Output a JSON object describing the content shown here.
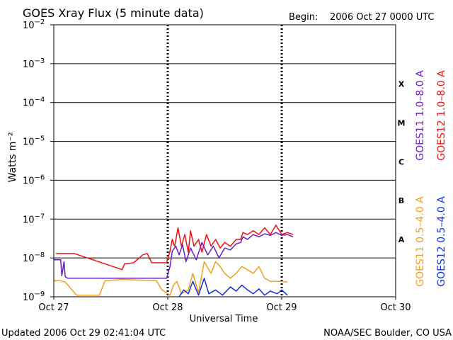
{
  "header": {
    "title": "GOES Xray Flux (5 minute data)",
    "begin_label": "Begin:",
    "begin_value": "2006 Oct 27 0000 UTC"
  },
  "footer": {
    "updated": "Updated 2006 Oct 29 02:41:04 UTC",
    "credit": "NOAA/SEC Boulder, CO USA"
  },
  "chart_data": {
    "type": "line",
    "title": "GOES Xray Flux (5 minute data)",
    "xlabel": "Universal Time",
    "ylabel": "Watts m⁻²",
    "yscale": "log",
    "ylim": [
      1e-09,
      0.01
    ],
    "xlim_days": [
      0,
      3
    ],
    "x_ticks": [
      {
        "label": "Oct 27",
        "day": 0
      },
      {
        "label": "Oct 28",
        "day": 1
      },
      {
        "label": "Oct 29",
        "day": 2
      },
      {
        "label": "Oct 30",
        "day": 3
      }
    ],
    "y_ticks": [
      {
        "base": "10",
        "exp": "−2",
        "value": 0.01
      },
      {
        "base": "10",
        "exp": "−3",
        "value": 0.001
      },
      {
        "base": "10",
        "exp": "−4",
        "value": 0.0001
      },
      {
        "base": "10",
        "exp": "−5",
        "value": 1e-05
      },
      {
        "base": "10",
        "exp": "−6",
        "value": 1e-06
      },
      {
        "base": "10",
        "exp": "−7",
        "value": 1e-07
      },
      {
        "base": "10",
        "exp": "−8",
        "value": 1e-08
      },
      {
        "base": "10",
        "exp": "−9",
        "value": 1e-09
      }
    ],
    "flare_classes": [
      {
        "label": "X",
        "value": 0.0003
      },
      {
        "label": "M",
        "value": 3e-05
      },
      {
        "label": "C",
        "value": 3e-06
      },
      {
        "label": "B",
        "value": 3e-07
      },
      {
        "label": "A",
        "value": 3e-08
      }
    ],
    "grid": true,
    "legend_position": "right",
    "series": [
      {
        "name": "GOES11 1.0–8.0 A",
        "color": "#6a1fc0",
        "points": [
          [
            0,
            9e-09
          ],
          [
            0.06,
            9e-09
          ],
          [
            0.07,
            3.5e-09
          ],
          [
            0.09,
            8e-09
          ],
          [
            0.1,
            3.3e-09
          ],
          [
            0.12,
            3e-09
          ],
          [
            0.25,
            3e-09
          ],
          [
            0.5,
            3e-09
          ],
          [
            0.8,
            3e-09
          ],
          [
            0.99,
            3e-09
          ],
          [
            1.02,
            6e-09
          ],
          [
            1.04,
            1.5e-08
          ],
          [
            1.07,
            2e-08
          ],
          [
            1.1,
            1.2e-08
          ],
          [
            1.13,
            2.2e-08
          ],
          [
            1.16,
            8e-09
          ],
          [
            1.2,
            1.8e-08
          ],
          [
            1.25,
            9e-09
          ],
          [
            1.3,
            2.5e-08
          ],
          [
            1.35,
            1.2e-08
          ],
          [
            1.4,
            2e-08
          ],
          [
            1.45,
            1e-08
          ],
          [
            1.5,
            1.8e-08
          ],
          [
            1.55,
            1.6e-08
          ],
          [
            1.6,
            2.3e-08
          ],
          [
            1.64,
            2.5e-08
          ],
          [
            1.66,
            3.5e-08
          ],
          [
            1.7,
            3e-08
          ],
          [
            1.75,
            4e-08
          ],
          [
            1.8,
            3.5e-08
          ],
          [
            1.85,
            4.2e-08
          ],
          [
            1.9,
            3.8e-08
          ],
          [
            1.95,
            4.5e-08
          ],
          [
            2.0,
            3.8e-08
          ],
          [
            2.05,
            4e-08
          ],
          [
            2.1,
            3.5e-08
          ]
        ]
      },
      {
        "name": "GOES12 1.0–8.0 A",
        "color": "#ee1111",
        "points": [
          [
            0.02,
            1.3e-08
          ],
          [
            0.18,
            1.3e-08
          ],
          [
            0.6,
            5e-09
          ],
          [
            0.62,
            7e-09
          ],
          [
            0.7,
            7.5e-09
          ],
          [
            0.78,
            1.2e-08
          ],
          [
            0.82,
            1.3e-08
          ],
          [
            0.86,
            7.5e-09
          ],
          [
            0.99,
            7.5e-09
          ],
          [
            1.02,
            1.5e-08
          ],
          [
            1.04,
            3e-08
          ],
          [
            1.06,
            2e-08
          ],
          [
            1.09,
            6e-08
          ],
          [
            1.12,
            2e-08
          ],
          [
            1.15,
            4e-08
          ],
          [
            1.18,
            1.4e-08
          ],
          [
            1.2,
            5e-08
          ],
          [
            1.23,
            2e-08
          ],
          [
            1.27,
            3e-08
          ],
          [
            1.3,
            1.4e-08
          ],
          [
            1.34,
            4e-08
          ],
          [
            1.38,
            2e-08
          ],
          [
            1.42,
            3e-08
          ],
          [
            1.46,
            1.8e-08
          ],
          [
            1.5,
            2.5e-08
          ],
          [
            1.55,
            2e-08
          ],
          [
            1.6,
            3e-08
          ],
          [
            1.64,
            3e-08
          ],
          [
            1.66,
            4.5e-08
          ],
          [
            1.7,
            4e-08
          ],
          [
            1.75,
            5e-08
          ],
          [
            1.8,
            4e-08
          ],
          [
            1.85,
            6e-08
          ],
          [
            1.9,
            4e-08
          ],
          [
            1.95,
            7e-08
          ],
          [
            2.0,
            4e-08
          ],
          [
            2.05,
            4.5e-08
          ],
          [
            2.1,
            4e-08
          ]
        ]
      },
      {
        "name": "GOES11 0.5–4.0 A",
        "color": "#f0a020",
        "points": [
          [
            0,
            2.6e-09
          ],
          [
            0.05,
            2.6e-09
          ],
          [
            0.1,
            2.4e-09
          ],
          [
            0.2,
            1.1e-09
          ],
          [
            0.4,
            1.1e-09
          ],
          [
            0.45,
            2.6e-09
          ],
          [
            0.6,
            2.8e-09
          ],
          [
            0.9,
            2.6e-09
          ],
          [
            0.95,
            1.5e-09
          ],
          [
            1.02,
            1.1e-09
          ],
          [
            1.05,
            2e-09
          ],
          [
            1.08,
            2.5e-09
          ],
          [
            1.12,
            1.2e-09
          ],
          [
            1.18,
            1.5e-09
          ],
          [
            1.22,
            4e-09
          ],
          [
            1.27,
            1.3e-09
          ],
          [
            1.32,
            8e-09
          ],
          [
            1.38,
            4e-09
          ],
          [
            1.42,
            8e-09
          ],
          [
            1.46,
            6e-09
          ],
          [
            1.5,
            4e-09
          ],
          [
            1.55,
            3e-09
          ],
          [
            1.6,
            4e-09
          ],
          [
            1.65,
            6e-09
          ],
          [
            1.7,
            5e-09
          ],
          [
            1.75,
            4e-09
          ],
          [
            1.8,
            6e-09
          ],
          [
            1.85,
            3e-09
          ],
          [
            1.9,
            2.5e-09
          ],
          [
            2.0,
            2.5e-09
          ],
          [
            2.05,
            2.4e-09
          ]
        ]
      },
      {
        "name": "GOES12 0.5–4.0 A",
        "color": "#1030e0",
        "points": [
          [
            1.1,
            1e-09
          ],
          [
            1.14,
            1.5e-09
          ],
          [
            1.18,
            1.2e-09
          ],
          [
            1.22,
            2.5e-09
          ],
          [
            1.27,
            1.1e-09
          ],
          [
            1.32,
            3e-09
          ],
          [
            1.36,
            1.2e-09
          ],
          [
            1.42,
            1.5e-09
          ],
          [
            1.48,
            1.1e-09
          ],
          [
            1.55,
            1.8e-09
          ],
          [
            1.6,
            1.4e-09
          ],
          [
            1.65,
            2e-09
          ],
          [
            1.7,
            1.5e-09
          ],
          [
            1.75,
            1.2e-09
          ],
          [
            1.8,
            1.6e-09
          ],
          [
            1.85,
            1.1e-09
          ],
          [
            1.9,
            1.4e-09
          ],
          [
            1.96,
            1.2e-09
          ],
          [
            2.0,
            1.5e-09
          ],
          [
            2.05,
            1.1e-09
          ]
        ]
      }
    ]
  }
}
